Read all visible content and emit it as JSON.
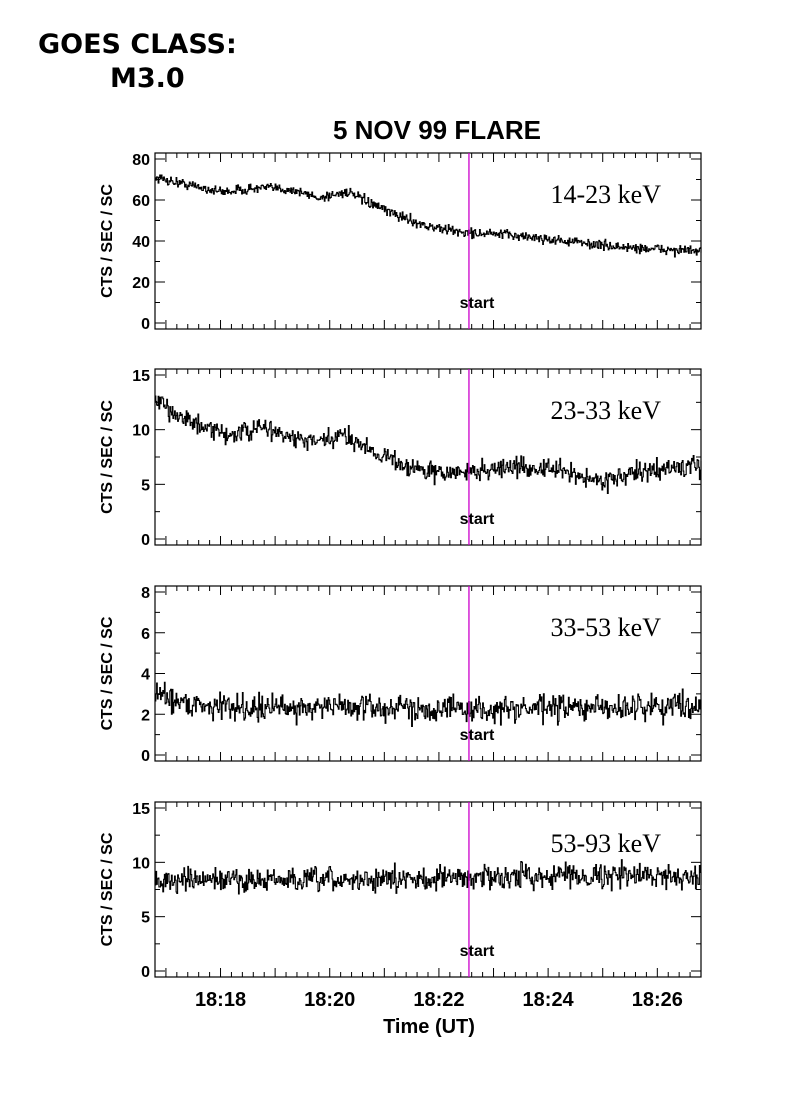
{
  "header": {
    "goes_label": "GOES CLASS:",
    "goes_class": "M3.0"
  },
  "colors": {
    "trace": "#000000",
    "marker": "#cc00cc"
  },
  "chart_data": {
    "type": "line",
    "title": "5 NOV 99 FLARE",
    "xlabel": "Time (UT)",
    "x_tick_labels": [
      "18:18",
      "18:20",
      "18:22",
      "18:24",
      "18:26"
    ],
    "x_tick_values_min": [
      1098,
      1100,
      1102,
      1104,
      1106
    ],
    "xlim_min": [
      1096.8,
      1106.8
    ],
    "marker": {
      "label": "start",
      "x_min": 1102.55
    },
    "panels": [
      {
        "band": "14-23 keV",
        "ylabel": "CTS / SEC / SC",
        "ylim": [
          0,
          80
        ],
        "yticks": [
          0,
          20,
          40,
          60,
          80
        ],
        "trend_x_min": [
          1096.8,
          1097.3,
          1098.0,
          1098.8,
          1099.3,
          1099.8,
          1100.3,
          1101.0,
          1101.8,
          1102.5,
          1103.3,
          1104.3,
          1105.3,
          1106.0,
          1106.8
        ],
        "trend_y": [
          71,
          68,
          64,
          66,
          65,
          61,
          64,
          55,
          47,
          44,
          43,
          40,
          37,
          36,
          35
        ],
        "noise": 1.2
      },
      {
        "band": "23-33 keV",
        "ylabel": "CTS / SEC / SC",
        "ylim": [
          0,
          15
        ],
        "yticks": [
          0,
          5,
          10,
          15
        ],
        "trend_x_min": [
          1096.8,
          1097.2,
          1097.7,
          1098.2,
          1098.8,
          1099.3,
          1099.8,
          1100.3,
          1100.8,
          1101.5,
          1102.0,
          1102.5,
          1103.3,
          1104.2,
          1104.9,
          1105.6,
          1106.2,
          1106.8
        ],
        "trend_y": [
          12.5,
          11.5,
          10.0,
          9.5,
          10.2,
          9.2,
          8.8,
          9.5,
          8.0,
          6.5,
          6.0,
          6.1,
          6.6,
          6.3,
          5.3,
          6.0,
          6.5,
          6.6
        ],
        "noise": 0.45
      },
      {
        "band": "33-53 keV",
        "ylabel": "CTS / SEC / SC",
        "ylim": [
          0,
          8
        ],
        "yticks": [
          0,
          2,
          4,
          6,
          8
        ],
        "trend_x_min": [
          1096.8,
          1097.0,
          1097.4,
          1098.0,
          1099.0,
          1100.0,
          1101.0,
          1102.0,
          1103.0,
          1104.0,
          1105.0,
          1106.0,
          1106.8
        ],
        "trend_y": [
          3.1,
          2.9,
          2.5,
          2.4,
          2.3,
          2.4,
          2.3,
          2.3,
          2.2,
          2.3,
          2.3,
          2.4,
          2.5
        ],
        "noise": 0.32
      },
      {
        "band": "53-93 keV",
        "ylabel": "CTS / SEC / SC",
        "ylim": [
          0,
          15
        ],
        "yticks": [
          0,
          5,
          10,
          15
        ],
        "trend_x_min": [
          1096.8,
          1098.0,
          1099.5,
          1101.0,
          1102.5,
          1104.0,
          1105.5,
          1106.8
        ],
        "trend_y": [
          8.2,
          8.4,
          8.3,
          8.4,
          8.6,
          8.8,
          8.8,
          8.7
        ],
        "noise": 0.55
      }
    ]
  }
}
